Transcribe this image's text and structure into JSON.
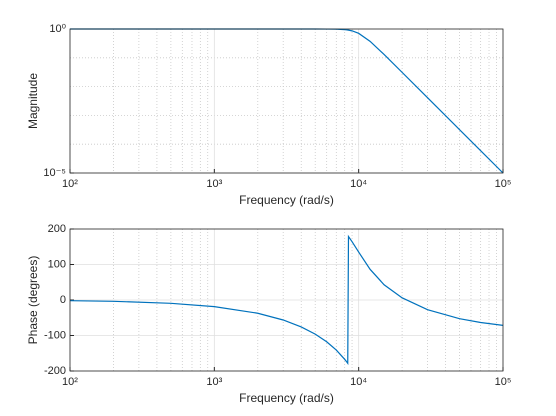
{
  "chart_data": [
    {
      "type": "line",
      "xlabel": "Frequency (rad/s)",
      "ylabel": "Magnitude",
      "x": [
        100,
        200,
        500,
        1000,
        2000,
        3000,
        4000,
        5000,
        6000,
        7000,
        8000,
        8200,
        8300,
        8400,
        8500,
        9000,
        10000,
        12000,
        15000,
        20000,
        30000,
        50000,
        70000,
        100000
      ],
      "values": [
        1,
        1,
        1,
        1,
        1,
        1,
        0.99995,
        0.9995,
        0.997,
        0.986,
        0.95,
        0.938,
        0.931,
        0.923,
        0.914,
        0.861,
        0.707,
        0.373,
        0.1305,
        0.0312,
        0.00411,
        0.00032,
        5.95e-05,
        1e-05
      ],
      "color": "#0072bd",
      "xscale": "log",
      "yscale": "log",
      "xlim": [
        100,
        100000
      ],
      "xticks": [
        {
          "value": 100,
          "label": "10²"
        },
        {
          "value": 1000,
          "label": "10³"
        },
        {
          "value": 10000,
          "label": "10⁴"
        },
        {
          "value": 100000,
          "label": "10⁵"
        }
      ],
      "ylim": [
        1e-05,
        1
      ],
      "yticks": [
        {
          "value": 1e-05,
          "label": "10⁻⁵"
        },
        {
          "value": 1,
          "label": "10⁰"
        }
      ],
      "grid": true,
      "minor_grid": true
    },
    {
      "type": "line",
      "xlabel": "Frequency (rad/s)",
      "ylabel": "Phase (degrees)",
      "x": [
        100,
        200,
        500,
        1000,
        2000,
        3000,
        4000,
        5000,
        6000,
        7000,
        8000,
        8200,
        8300,
        8400,
        8500,
        9000,
        10000,
        12000,
        15000,
        20000,
        30000,
        50000,
        70000,
        100000
      ],
      "values": [
        -1.9,
        -3.7,
        -9.3,
        -18.6,
        -37.3,
        -56.3,
        -75.8,
        -96.1,
        -117.6,
        -141.1,
        -167.1,
        -172.6,
        -175.4,
        -178.3,
        178.9,
        164.3,
        135,
        86.4,
        43,
        6.1,
        -27.3,
        -52.7,
        -63.4,
        -71.4
      ],
      "color": "#0072bd",
      "xscale": "log",
      "yscale": "linear",
      "xlim": [
        100,
        100000
      ],
      "xticks": [
        {
          "value": 100,
          "label": "10²"
        },
        {
          "value": 1000,
          "label": "10³"
        },
        {
          "value": 10000,
          "label": "10⁴"
        },
        {
          "value": 100000,
          "label": "10⁵"
        }
      ],
      "ylim": [
        -200,
        200
      ],
      "yticks": [
        -200,
        -100,
        0,
        100,
        200
      ],
      "grid": true,
      "minor_grid": true
    }
  ]
}
